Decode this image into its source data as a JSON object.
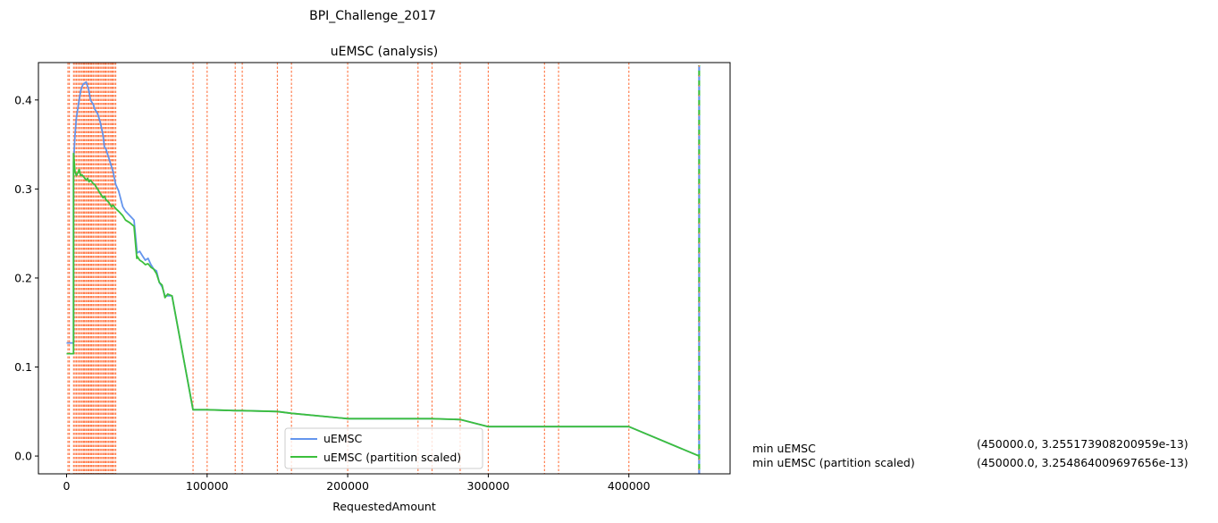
{
  "suptitle": "BPI_Challenge_2017",
  "chart_data": {
    "type": "line",
    "title": "uEMSC (analysis)",
    "xlabel": "RequestedAmount",
    "ylabel": "",
    "xlim": [
      -20000,
      472000
    ],
    "ylim": [
      -0.02,
      0.442
    ],
    "xticks": [
      0,
      100000,
      200000,
      300000,
      400000
    ],
    "xtick_labels": [
      "0",
      "100000",
      "200000",
      "300000",
      "400000"
    ],
    "yticks": [
      0.0,
      0.1,
      0.2,
      0.3,
      0.4
    ],
    "ytick_labels": [
      "0.0",
      "0.1",
      "0.2",
      "0.3",
      "0.4"
    ],
    "legend_position": "lower center",
    "colors": {
      "uemsc": "#6495ed",
      "partition": "#3cbf3c",
      "vlines": "#ff7f50"
    },
    "series": [
      {
        "name": "uEMSC",
        "color": "#6495ed",
        "x": [
          0,
          3000,
          5000,
          5000,
          6000,
          7000,
          8000,
          9000,
          10000,
          11000,
          12000,
          14000,
          15000,
          16000,
          17000,
          19000,
          20000,
          22000,
          24000,
          26000,
          27000,
          28000,
          30000,
          32000,
          33000,
          35000,
          37000,
          40000,
          42000,
          45000,
          48000,
          50000,
          50000,
          52000,
          54000,
          56000,
          58000,
          60000,
          62000,
          64000,
          66000,
          68000,
          70000,
          72000,
          75000,
          90000,
          100000,
          120000,
          125000,
          150000,
          160000,
          200000,
          250000,
          260000,
          280000,
          300000,
          340000,
          350000,
          400000,
          450000
        ],
        "y": [
          0.127,
          0.127,
          0.127,
          0.33,
          0.36,
          0.38,
          0.39,
          0.4,
          0.41,
          0.415,
          0.418,
          0.42,
          0.415,
          0.41,
          0.4,
          0.395,
          0.39,
          0.385,
          0.375,
          0.36,
          0.347,
          0.345,
          0.335,
          0.325,
          0.32,
          0.305,
          0.298,
          0.28,
          0.275,
          0.27,
          0.265,
          0.232,
          0.228,
          0.23,
          0.225,
          0.22,
          0.222,
          0.215,
          0.21,
          0.208,
          0.195,
          0.19,
          0.18,
          0.18,
          0.18,
          0.052,
          0.052,
          0.051,
          0.051,
          0.05,
          0.048,
          0.042,
          0.042,
          0.042,
          0.041,
          0.033,
          0.033,
          0.033,
          0.033,
          3.255173908200959e-13
        ]
      },
      {
        "name": "uEMSC (partition scaled)",
        "color": "#3cbf3c",
        "x": [
          0,
          3000,
          5000,
          5000,
          6000,
          7000,
          8000,
          9000,
          10000,
          11000,
          12000,
          14000,
          15000,
          16000,
          17000,
          19000,
          20000,
          22000,
          24000,
          26000,
          27000,
          28000,
          30000,
          32000,
          33000,
          35000,
          37000,
          40000,
          42000,
          45000,
          48000,
          50000,
          50000,
          52000,
          54000,
          56000,
          58000,
          60000,
          62000,
          64000,
          66000,
          68000,
          70000,
          72000,
          75000,
          90000,
          100000,
          120000,
          125000,
          150000,
          160000,
          200000,
          250000,
          260000,
          280000,
          300000,
          340000,
          350000,
          400000,
          450000
        ],
        "y": [
          0.115,
          0.115,
          0.115,
          0.34,
          0.32,
          0.315,
          0.318,
          0.322,
          0.315,
          0.316,
          0.314,
          0.31,
          0.312,
          0.308,
          0.31,
          0.306,
          0.305,
          0.3,
          0.295,
          0.29,
          0.292,
          0.288,
          0.285,
          0.28,
          0.282,
          0.278,
          0.275,
          0.27,
          0.265,
          0.262,
          0.258,
          0.222,
          0.225,
          0.22,
          0.218,
          0.215,
          0.216,
          0.212,
          0.21,
          0.205,
          0.195,
          0.192,
          0.178,
          0.182,
          0.18,
          0.052,
          0.052,
          0.051,
          0.051,
          0.05,
          0.048,
          0.042,
          0.042,
          0.042,
          0.041,
          0.033,
          0.033,
          0.033,
          0.033,
          3.254864009697656e-13
        ]
      }
    ],
    "vlines_x": [
      1000,
      2000,
      5000,
      6000,
      7000,
      8000,
      9000,
      10000,
      11000,
      12000,
      12500,
      13000,
      14000,
      15000,
      15500,
      16000,
      17000,
      17500,
      18000,
      19000,
      20000,
      21000,
      22000,
      22500,
      23000,
      24000,
      25000,
      26000,
      27000,
      27500,
      28000,
      29000,
      30000,
      31000,
      32000,
      32500,
      33000,
      34000,
      35000,
      90000,
      100000,
      120000,
      125000,
      150000,
      160000,
      200000,
      250000,
      260000,
      280000,
      300000,
      340000,
      350000,
      400000
    ],
    "min_marker_x": 450000,
    "legend": [
      "uEMSC",
      "uEMSC (partition scaled)"
    ]
  },
  "annotations": {
    "row1_label": "min uEMSC",
    "row1_value": "(450000.0, 3.255173908200959e-13)",
    "row2_label": "min uEMSC (partition scaled)",
    "row2_value": "(450000.0, 3.254864009697656e-13)"
  }
}
